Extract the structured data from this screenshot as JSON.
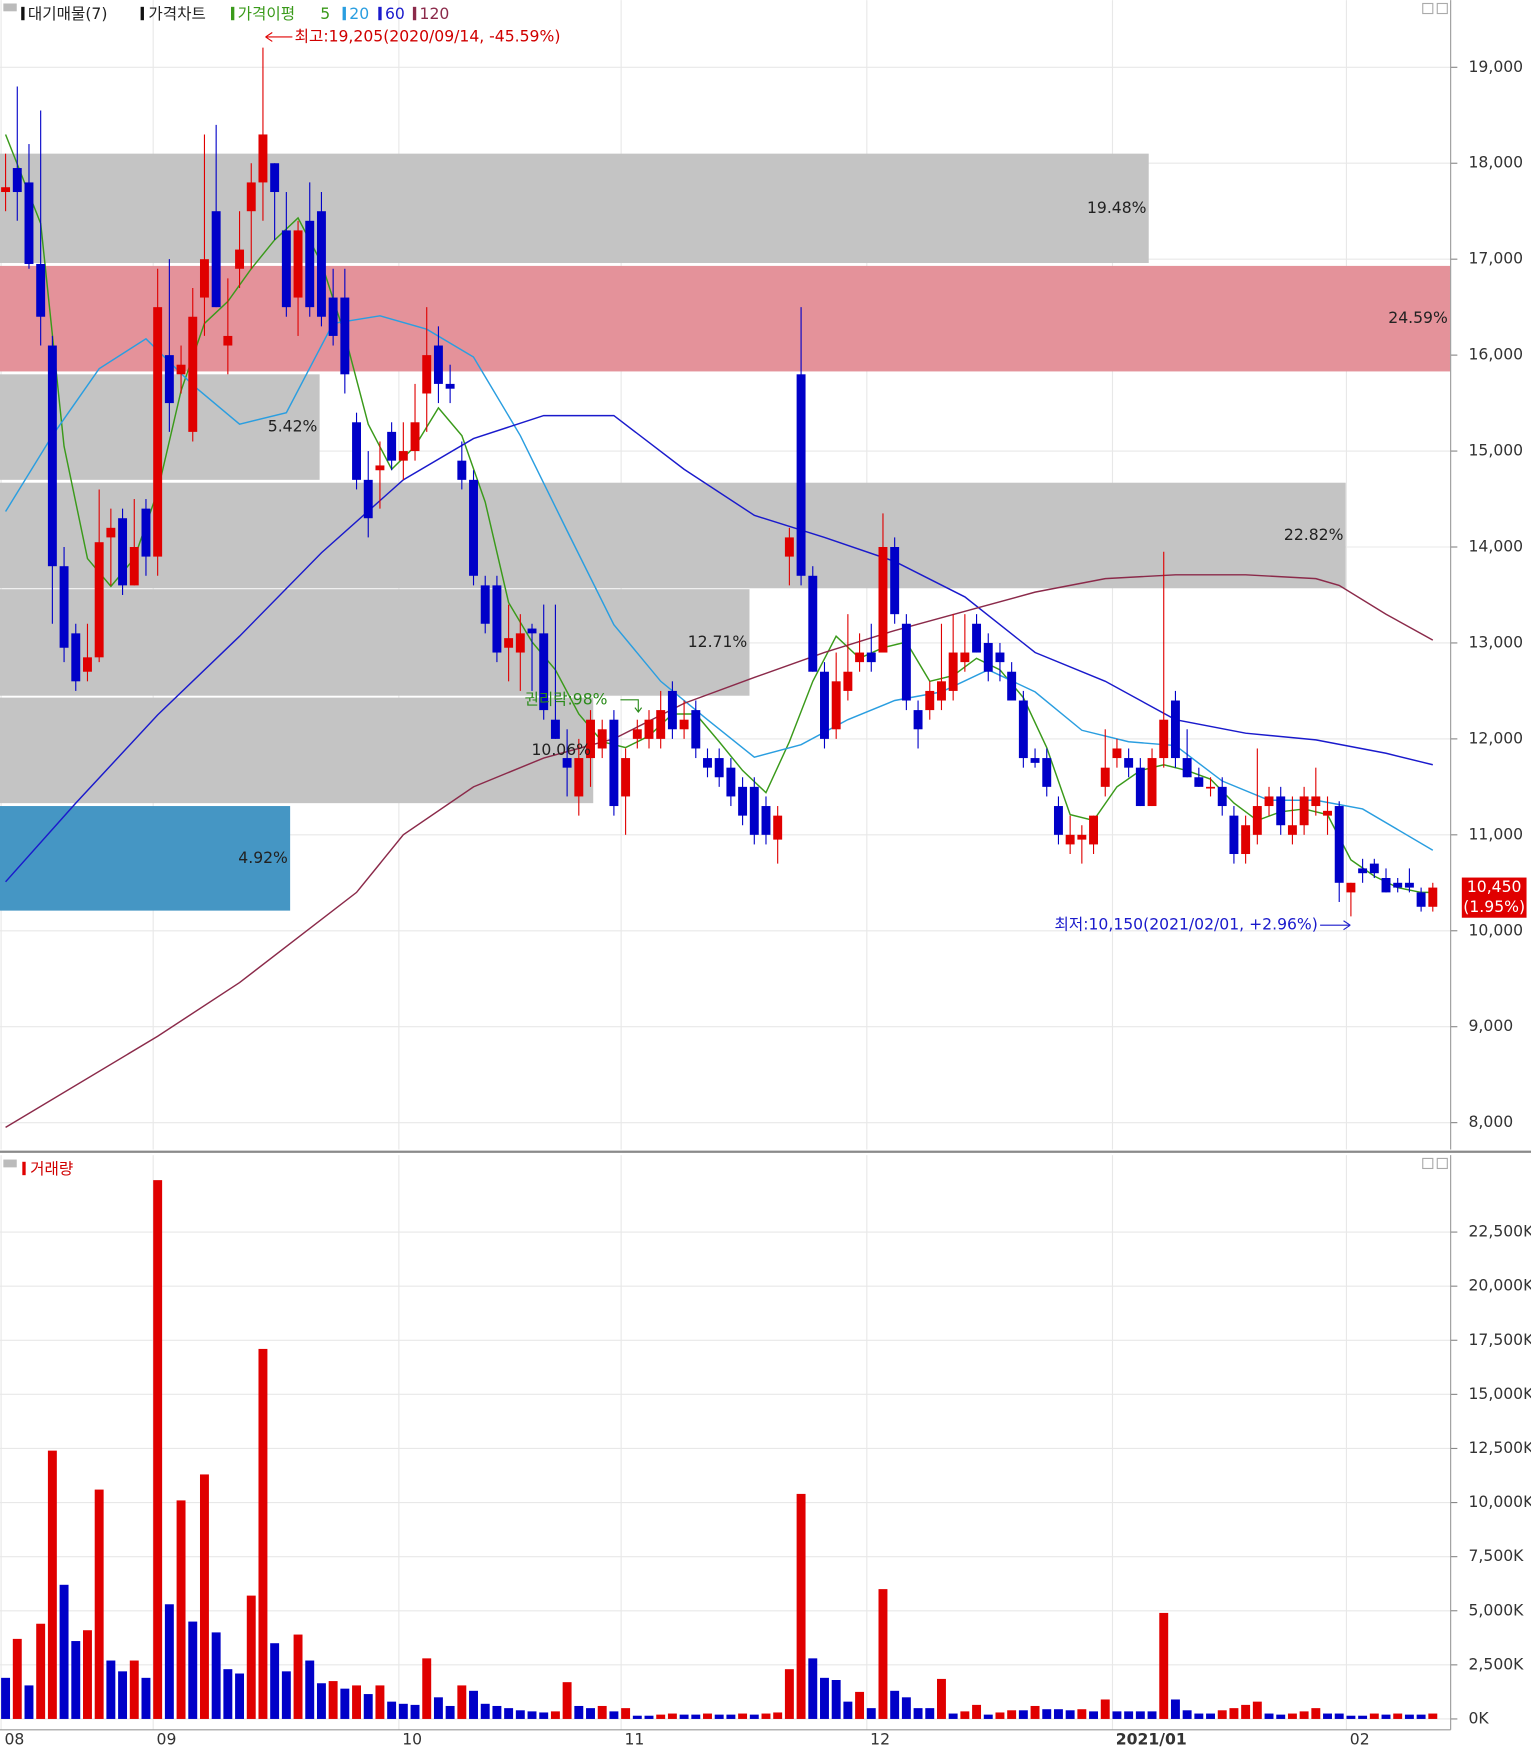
{
  "chart_data": [
    {
      "type": "candlestick",
      "legend": {
        "supply": "대기매물(7)",
        "price": "가격차트",
        "ma": "가격이평"
      },
      "categories": [
        "08",
        null,
        null,
        null,
        null,
        null,
        null,
        null,
        null,
        null,
        null,
        null,
        null,
        "09",
        null,
        null,
        null,
        null,
        null,
        null,
        null,
        null,
        null,
        null,
        null,
        null,
        null,
        null,
        null,
        null,
        null,
        null,
        null,
        null,
        "10",
        null,
        null,
        null,
        null,
        null,
        null,
        null,
        null,
        null,
        null,
        null,
        null,
        null,
        null,
        null,
        null,
        null,
        null,
        "11",
        null,
        null,
        null,
        null,
        null,
        null,
        null,
        null,
        null,
        null,
        null,
        null,
        null,
        null,
        null,
        null,
        null,
        null,
        null,
        null,
        "12",
        null,
        null,
        null,
        null,
        null,
        null,
        null,
        null,
        null,
        null,
        null,
        null,
        null,
        null,
        null,
        null,
        null,
        null,
        null,
        null,
        "2021/01",
        null,
        null,
        null,
        null,
        null,
        null,
        null,
        null,
        null,
        null,
        null,
        null,
        null,
        null,
        null,
        null,
        null,
        null,
        null,
        "02",
        null,
        null,
        null,
        null,
        null,
        null,
        null
      ],
      "open": [
        17700,
        17950,
        17800,
        16950,
        16100,
        13800,
        13100,
        12700,
        12850,
        14100,
        14300,
        13600,
        14400,
        13900,
        16000,
        15800,
        15200,
        16600,
        17500,
        16100,
        16900,
        17500,
        17800,
        18000,
        17300,
        16600,
        17400,
        17500,
        16600,
        16600,
        15300,
        14700,
        14800,
        15200,
        14900,
        15000,
        15600,
        16100,
        15700,
        14900,
        14700,
        13600,
        13600,
        12950,
        12900,
        13150,
        13100,
        12200,
        11800,
        11400,
        11800,
        11900,
        12200,
        11400,
        12000,
        12000,
        12000,
        12500,
        12100,
        12300,
        11800,
        11800,
        11700,
        11500,
        11500,
        11300,
        10950,
        13900,
        15800,
        13700,
        12700,
        12100,
        12500,
        12800,
        12900,
        12900,
        14000,
        13200,
        12300,
        12300,
        12400,
        12500,
        12800,
        13200,
        13000,
        12900,
        12700,
        12400,
        11800,
        11800,
        11300,
        10900,
        10950,
        10900,
        11500,
        11800,
        11800,
        11700,
        11300,
        11800,
        12400,
        11800,
        11600,
        11500,
        11500,
        11200,
        10800,
        11000,
        11300,
        11400,
        11000,
        11100,
        11300,
        11200,
        11300,
        10400,
        10650,
        10700,
        10550,
        10500,
        10500,
        10400,
        10250
      ],
      "high": [
        18100,
        18800,
        18200,
        18550,
        16200,
        14000,
        13200,
        13200,
        14600,
        14400,
        14400,
        14500,
        14500,
        16900,
        17000,
        16100,
        16700,
        18300,
        18400,
        16800,
        17500,
        18000,
        19205,
        18000,
        17700,
        17400,
        17800,
        17700,
        16900,
        16900,
        15400,
        15000,
        15100,
        15300,
        15300,
        15700,
        16500,
        16300,
        15900,
        15100,
        14800,
        13700,
        13700,
        13400,
        13300,
        13200,
        13400,
        13400,
        12100,
        12000,
        12300,
        12200,
        12300,
        11900,
        12200,
        12300,
        12500,
        12600,
        12400,
        12400,
        11900,
        11900,
        11800,
        11600,
        11600,
        11400,
        11300,
        14200,
        16500,
        13800,
        12800,
        12900,
        13300,
        13100,
        13200,
        14350,
        14100,
        13300,
        12400,
        12600,
        13200,
        13300,
        13300,
        13300,
        13100,
        13000,
        12800,
        12500,
        11900,
        11900,
        11400,
        11200,
        11100,
        11200,
        12100,
        12000,
        11900,
        11800,
        11900,
        13950,
        12500,
        12100,
        11700,
        11600,
        11600,
        11300,
        11200,
        11900,
        11500,
        11500,
        11400,
        11500,
        11700,
        11400,
        11350,
        10500,
        10750,
        10750,
        10650,
        10550,
        10650,
        10450,
        10500
      ],
      "low": [
        17500,
        17400,
        16900,
        16100,
        13200,
        12800,
        12500,
        12600,
        12800,
        13600,
        13500,
        13600,
        13700,
        13700,
        15200,
        15600,
        15100,
        16200,
        16500,
        15800,
        16700,
        16900,
        17400,
        17200,
        16400,
        16200,
        16400,
        16300,
        16100,
        15600,
        14600,
        14100,
        14400,
        14800,
        14700,
        14900,
        15200,
        15500,
        15500,
        14600,
        13600,
        13100,
        12800,
        12600,
        12500,
        12500,
        12200,
        12000,
        11400,
        11200,
        11500,
        11800,
        11200,
        11000,
        11900,
        11900,
        11900,
        12000,
        12000,
        11800,
        11600,
        11500,
        11300,
        11100,
        10900,
        10900,
        10700,
        13600,
        13600,
        12700,
        11900,
        12000,
        12400,
        12700,
        12700,
        12900,
        13200,
        12300,
        11900,
        12200,
        12300,
        12400,
        12700,
        12900,
        12600,
        12600,
        12400,
        11700,
        11700,
        11400,
        10900,
        10800,
        10700,
        10800,
        11400,
        11700,
        11600,
        11300,
        11300,
        11700,
        11700,
        11600,
        11500,
        11400,
        11200,
        10700,
        10700,
        10900,
        11200,
        11000,
        10900,
        11000,
        11200,
        11000,
        10300,
        10150,
        10500,
        10550,
        10400,
        10400,
        10400,
        10200,
        10200
      ],
      "close": [
        17750,
        17700,
        16950,
        16400,
        13800,
        12950,
        12600,
        12850,
        14050,
        14200,
        13600,
        14000,
        13900,
        16500,
        15500,
        15900,
        16400,
        17000,
        16500,
        16200,
        17100,
        17800,
        18300,
        17700,
        16500,
        17300,
        16500,
        16400,
        16200,
        15800,
        14700,
        14300,
        14850,
        14900,
        15000,
        15300,
        16000,
        15700,
        15650,
        14700,
        13700,
        13200,
        12900,
        13050,
        13100,
        13100,
        12300,
        12000,
        11700,
        11800,
        12200,
        12100,
        11300,
        11800,
        12100,
        12200,
        12300,
        12100,
        12200,
        11900,
        11700,
        11600,
        11400,
        11200,
        11000,
        11000,
        11200,
        14100,
        13700,
        12700,
        12000,
        12600,
        12700,
        12900,
        12800,
        14000,
        13300,
        12400,
        12100,
        12500,
        12600,
        12900,
        12900,
        12900,
        12700,
        12800,
        12400,
        11800,
        11750,
        11500,
        11000,
        11000,
        11000,
        11200,
        11700,
        11900,
        11700,
        11300,
        11800,
        12200,
        11800,
        11600,
        11500,
        11500,
        11300,
        10800,
        11100,
        11300,
        11400,
        11100,
        11100,
        11400,
        11400,
        11250,
        10500,
        10500,
        10600,
        10600,
        10400,
        10450,
        10450,
        10250,
        10450
      ],
      "up_color": "#e00000",
      "down_color": "#0000c8",
      "ylim": [
        7720,
        19700
      ],
      "yticks": [
        {
          "value": 8000,
          "label": "8,000"
        },
        {
          "value": 9000,
          "label": "9,000"
        },
        {
          "value": 10000,
          "label": "10,000"
        },
        {
          "value": 11000,
          "label": "11,000"
        },
        {
          "value": 12000,
          "label": "12,000"
        },
        {
          "value": 13000,
          "label": "13,000"
        },
        {
          "value": 14000,
          "label": "14,000"
        },
        {
          "value": 15000,
          "label": "15,000"
        },
        {
          "value": 16000,
          "label": "16,000"
        },
        {
          "value": 17000,
          "label": "17,000"
        },
        {
          "value": 18000,
          "label": "18,000"
        },
        {
          "value": 19000,
          "label": "19,000"
        }
      ],
      "grid": true,
      "ma_series": [
        {
          "name": "5",
          "color": "#3a9a1a",
          "x": [
            0,
            3,
            5,
            7,
            9,
            11,
            13,
            15,
            17,
            19,
            21,
            23,
            25,
            27,
            29,
            31,
            33,
            35,
            37,
            39,
            41,
            43,
            45,
            47,
            49,
            51,
            53,
            55,
            57,
            59,
            61,
            63,
            65,
            67,
            69,
            71,
            73,
            75,
            77,
            79,
            81,
            83,
            85,
            87,
            89,
            91,
            93,
            95,
            97,
            99,
            101,
            103,
            105,
            107,
            109,
            111,
            113,
            115,
            117,
            119,
            121,
            122
          ],
          "values": [
            18300,
            17370,
            15050,
            13880,
            13590,
            13880,
            14580,
            15630,
            16330,
            16560,
            16900,
            17200,
            17430,
            16960,
            16210,
            15280,
            14810,
            15050,
            15450,
            15160,
            14470,
            13420,
            13010,
            12720,
            12260,
            11970,
            11910,
            12030,
            12260,
            12260,
            11970,
            11670,
            11440,
            11970,
            12600,
            13070,
            12840,
            12950,
            13010,
            12600,
            12660,
            12840,
            12720,
            12430,
            11910,
            11210,
            11150,
            11500,
            11670,
            11730,
            11670,
            11580,
            11330,
            11150,
            11240,
            11270,
            11210,
            10740,
            10570,
            10450,
            10400,
            10400
          ]
        },
        {
          "name": "20",
          "color": "#2a9ee0",
          "x": [
            0,
            4,
            8,
            12,
            16,
            20,
            24,
            28,
            32,
            36,
            40,
            44,
            48,
            52,
            56,
            60,
            64,
            68,
            72,
            76,
            80,
            84,
            88,
            92,
            96,
            100,
            104,
            108,
            112,
            116,
            122
          ],
          "values": [
            14370,
            15160,
            15860,
            16170,
            15690,
            15280,
            15400,
            16330,
            16410,
            16270,
            15980,
            15160,
            14170,
            13190,
            12600,
            12200,
            11810,
            11940,
            12200,
            12400,
            12490,
            12720,
            12490,
            12090,
            11970,
            11930,
            11560,
            11360,
            11360,
            11270,
            10840
          ]
        },
        {
          "name": "60",
          "color": "#1a1acc",
          "x": [
            0,
            6,
            13,
            20,
            27,
            34,
            40,
            46,
            52,
            58,
            64,
            70,
            76,
            82,
            88,
            94,
            100,
            106,
            112,
            118,
            122
          ],
          "values": [
            10510,
            11330,
            12250,
            13070,
            13940,
            14700,
            15130,
            15370,
            15370,
            14810,
            14330,
            14100,
            13850,
            13480,
            12900,
            12600,
            12200,
            12060,
            11990,
            11850,
            11730
          ]
        },
        {
          "name": "120",
          "color": "#8b2a4a",
          "x": [
            0,
            13,
            20,
            30,
            34,
            40,
            46,
            52,
            58,
            64,
            70,
            76,
            82,
            88,
            94,
            100,
            106,
            112,
            114,
            118,
            122
          ],
          "values": [
            7950,
            8900,
            9460,
            10400,
            11000,
            11500,
            11800,
            12000,
            12370,
            12640,
            12900,
            13130,
            13330,
            13530,
            13670,
            13710,
            13710,
            13670,
            13600,
            13300,
            13030
          ]
        }
      ],
      "zones": {
        "title": "대기매물(7)",
        "xlim": [
          0,
          24.6
        ],
        "ranges": [
          [
            16960,
            18100
          ],
          [
            15830,
            16930
          ],
          [
            14700,
            15800
          ],
          [
            13570,
            14670
          ],
          [
            12450,
            13560
          ],
          [
            11330,
            12430
          ],
          [
            10210,
            11300
          ]
        ],
        "values": [
          19.48,
          24.59,
          5.42,
          22.82,
          12.71,
          10.06,
          4.92
        ],
        "value_labels": [
          "19.48%",
          "24.59%",
          "5.42%",
          "22.82%",
          "12.71%",
          "10.06%",
          "4.92%"
        ],
        "colors": [
          "#c4c4c4",
          "#e4929a",
          "#c4c4c4",
          "#c4c4c4",
          "#c4c4c4",
          "#c4c4c4",
          "#4596c4"
        ]
      },
      "annotations": {
        "high": "최고:19,205(2020/09/14, -45.59%)",
        "low": "최저:10,150(2021/02/01, +2.96%)",
        "rights": "권리락:98%"
      },
      "last_price": {
        "label": "10,450",
        "change": "(1.95%)"
      }
    },
    {
      "type": "bar",
      "title": "거래량",
      "values": [
        1900,
        3700,
        1550,
        4400,
        12400,
        6200,
        3600,
        4100,
        10600,
        2700,
        2200,
        2700,
        1900,
        24900,
        5300,
        10100,
        4500,
        11300,
        4000,
        2300,
        2100,
        5700,
        17100,
        3500,
        2200,
        3900,
        2700,
        1650,
        1750,
        1400,
        1550,
        1150,
        1550,
        800,
        700,
        650,
        2800,
        1000,
        600,
        1550,
        1300,
        700,
        600,
        500,
        400,
        350,
        300,
        350,
        1700,
        600,
        500,
        600,
        350,
        500,
        150,
        150,
        200,
        250,
        200,
        200,
        250,
        200,
        200,
        250,
        200,
        250,
        300,
        2300,
        10400,
        2800,
        1900,
        1800,
        800,
        1250,
        500,
        6000,
        1300,
        1000,
        500,
        500,
        1850,
        250,
        350,
        650,
        200,
        300,
        400,
        400,
        600,
        450,
        450,
        400,
        450,
        350,
        900,
        350,
        350,
        350,
        350,
        4900,
        900,
        400,
        250,
        250,
        400,
        500,
        650,
        800,
        250,
        200,
        250,
        350,
        500,
        250,
        250,
        150,
        150,
        250,
        200,
        250,
        200,
        200,
        250
      ],
      "ylim": [
        -500,
        25800
      ],
      "yticks": [
        {
          "value": 0,
          "label": "0K"
        },
        {
          "value": 2500,
          "label": "2,500K"
        },
        {
          "value": 5000,
          "label": "5,000K"
        },
        {
          "value": 7500,
          "label": "7,500K"
        },
        {
          "value": 10000,
          "label": "10,000K"
        },
        {
          "value": 12500,
          "label": "12,500K"
        },
        {
          "value": 15000,
          "label": "15,000K"
        },
        {
          "value": 17500,
          "label": "17,500K"
        },
        {
          "value": 20000,
          "label": "20,000K"
        },
        {
          "value": 22500,
          "label": "22,500K"
        }
      ],
      "grid": true
    }
  ]
}
